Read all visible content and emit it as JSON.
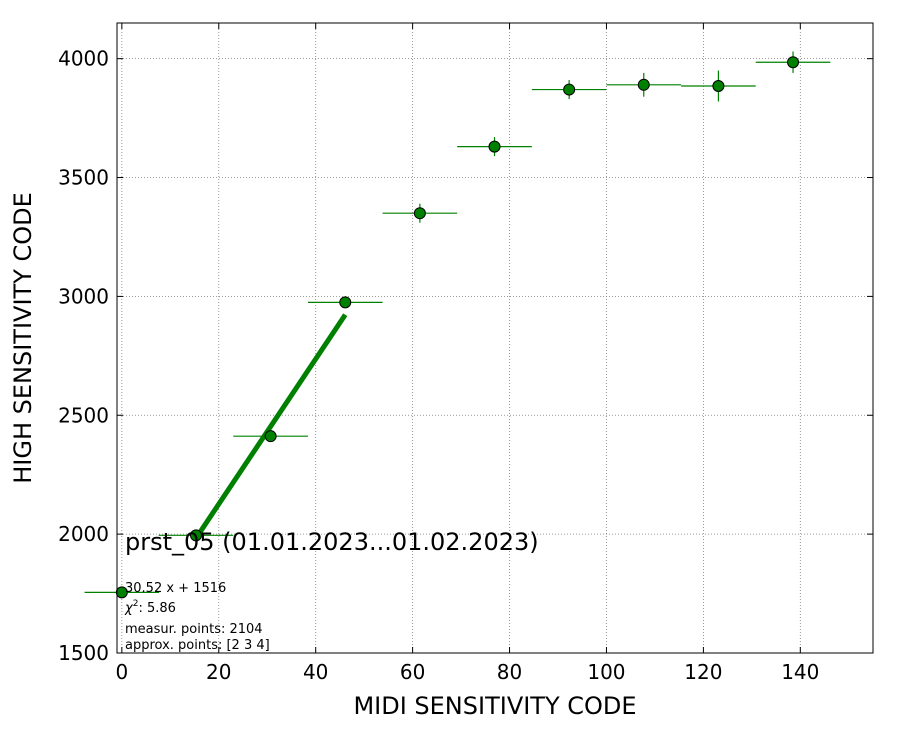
{
  "chart_data": {
    "type": "scatter",
    "xlabel": "MIDI SENSITIVITY CODE",
    "ylabel": "HIGH SENSITIVITY CODE",
    "xlim": [
      -1,
      155
    ],
    "ylim": [
      1500,
      4150
    ],
    "x_ticks": [
      0,
      20,
      40,
      60,
      80,
      100,
      120,
      140
    ],
    "y_ticks": [
      1500,
      2000,
      2500,
      3000,
      3500,
      4000
    ],
    "grid": true,
    "marker_color": "#008000",
    "errorbar_color": "#008000",
    "fit_color": "#008000",
    "points": [
      {
        "x": 0,
        "y": 1755,
        "xerr": 7.7,
        "yerr": 12
      },
      {
        "x": 15.3,
        "y": 1995,
        "xerr": 7.7,
        "yerr": 12
      },
      {
        "x": 30.7,
        "y": 2412,
        "xerr": 7.7,
        "yerr": 15
      },
      {
        "x": 46.1,
        "y": 2975,
        "xerr": 7.7,
        "yerr": 20
      },
      {
        "x": 61.5,
        "y": 3350,
        "xerr": 7.7,
        "yerr": 40
      },
      {
        "x": 76.9,
        "y": 3630,
        "xerr": 7.7,
        "yerr": 40
      },
      {
        "x": 92.3,
        "y": 3870,
        "xerr": 7.7,
        "yerr": 40
      },
      {
        "x": 107.7,
        "y": 3890,
        "xerr": 7.7,
        "yerr": 50
      },
      {
        "x": 123.1,
        "y": 3885,
        "xerr": 7.7,
        "yerr": 65
      },
      {
        "x": 138.5,
        "y": 3985,
        "xerr": 7.7,
        "yerr": 45
      }
    ],
    "fit": {
      "slope": 30.52,
      "intercept": 1516,
      "x_range": [
        15.3,
        46.1
      ]
    },
    "annotations": {
      "title": "prst_05 (01.01.2023...01.02.2023)",
      "equation": "30.52 x + 1516",
      "chi2_label": "χ",
      "chi2_sup": "2",
      "chi2_value": ": 5.86",
      "measur_points": "measur. points: 2104",
      "approx_points": "approx. points: [2 3 4]"
    }
  }
}
